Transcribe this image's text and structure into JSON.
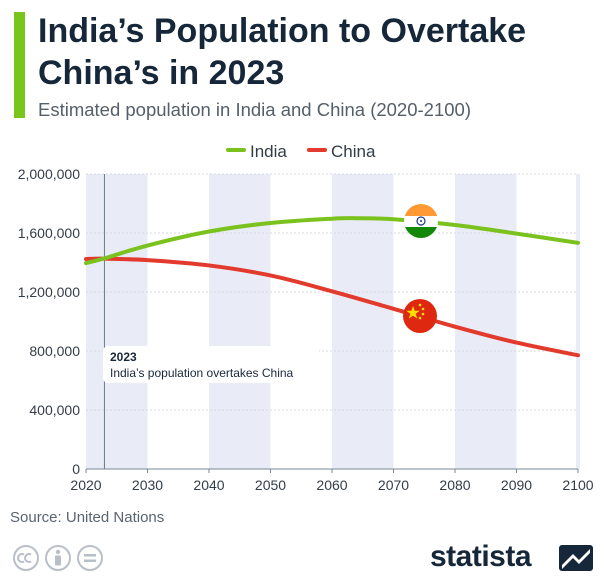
{
  "header": {
    "title": "India’s Population to Overtake China’s in 2023",
    "subtitle": "Estimated population in India and China (2020-2100)"
  },
  "colors": {
    "accent": "#78c51c",
    "india": "#7bc21f",
    "china": "#e23a2c",
    "band": "#e9ecf6",
    "text_dark": "#17273a"
  },
  "chart_data": {
    "type": "line",
    "title": "India’s Population to Overtake China’s in 2023",
    "subtitle": "Estimated population in India and China (2020-2100)",
    "xlabel": "",
    "ylabel": "",
    "xlim": [
      2020,
      2100
    ],
    "ylim": [
      0,
      2000000
    ],
    "x_ticks": [
      2020,
      2030,
      2040,
      2050,
      2060,
      2070,
      2080,
      2090,
      2100
    ],
    "y_ticks": [
      0,
      400000,
      800000,
      1200000,
      1600000,
      2000000
    ],
    "x_tick_labels": [
      "2020",
      "2030",
      "2040",
      "2050",
      "2060",
      "2070",
      "2080",
      "2090",
      "2100"
    ],
    "y_tick_labels": [
      "0",
      "400,000",
      "800,000",
      "1,200,000",
      "1,600,000",
      "2,000,000"
    ],
    "legend": [
      "India",
      "China"
    ],
    "legend_placement": "top-center",
    "series": [
      {
        "name": "India",
        "icon": "india-flag-icon",
        "x": [
          2020,
          2023,
          2030,
          2040,
          2050,
          2060,
          2064,
          2070,
          2080,
          2090,
          2100
        ],
        "values": [
          1396000,
          1428000,
          1515000,
          1610000,
          1668000,
          1697000,
          1700000,
          1693000,
          1654000,
          1596000,
          1533000
        ]
      },
      {
        "name": "China",
        "icon": "china-flag-icon",
        "x": [
          2020,
          2023,
          2030,
          2040,
          2050,
          2060,
          2070,
          2080,
          2090,
          2100
        ],
        "values": [
          1424000,
          1426000,
          1416000,
          1380000,
          1312000,
          1205000,
          1086000,
          965000,
          857000,
          771000
        ]
      }
    ],
    "annotation": {
      "year_label": "2023",
      "year": 2023,
      "y_value": 900000,
      "text": "India’s population overtakes China"
    }
  },
  "footer": {
    "source": "Source: United Nations",
    "brand": "statista"
  }
}
